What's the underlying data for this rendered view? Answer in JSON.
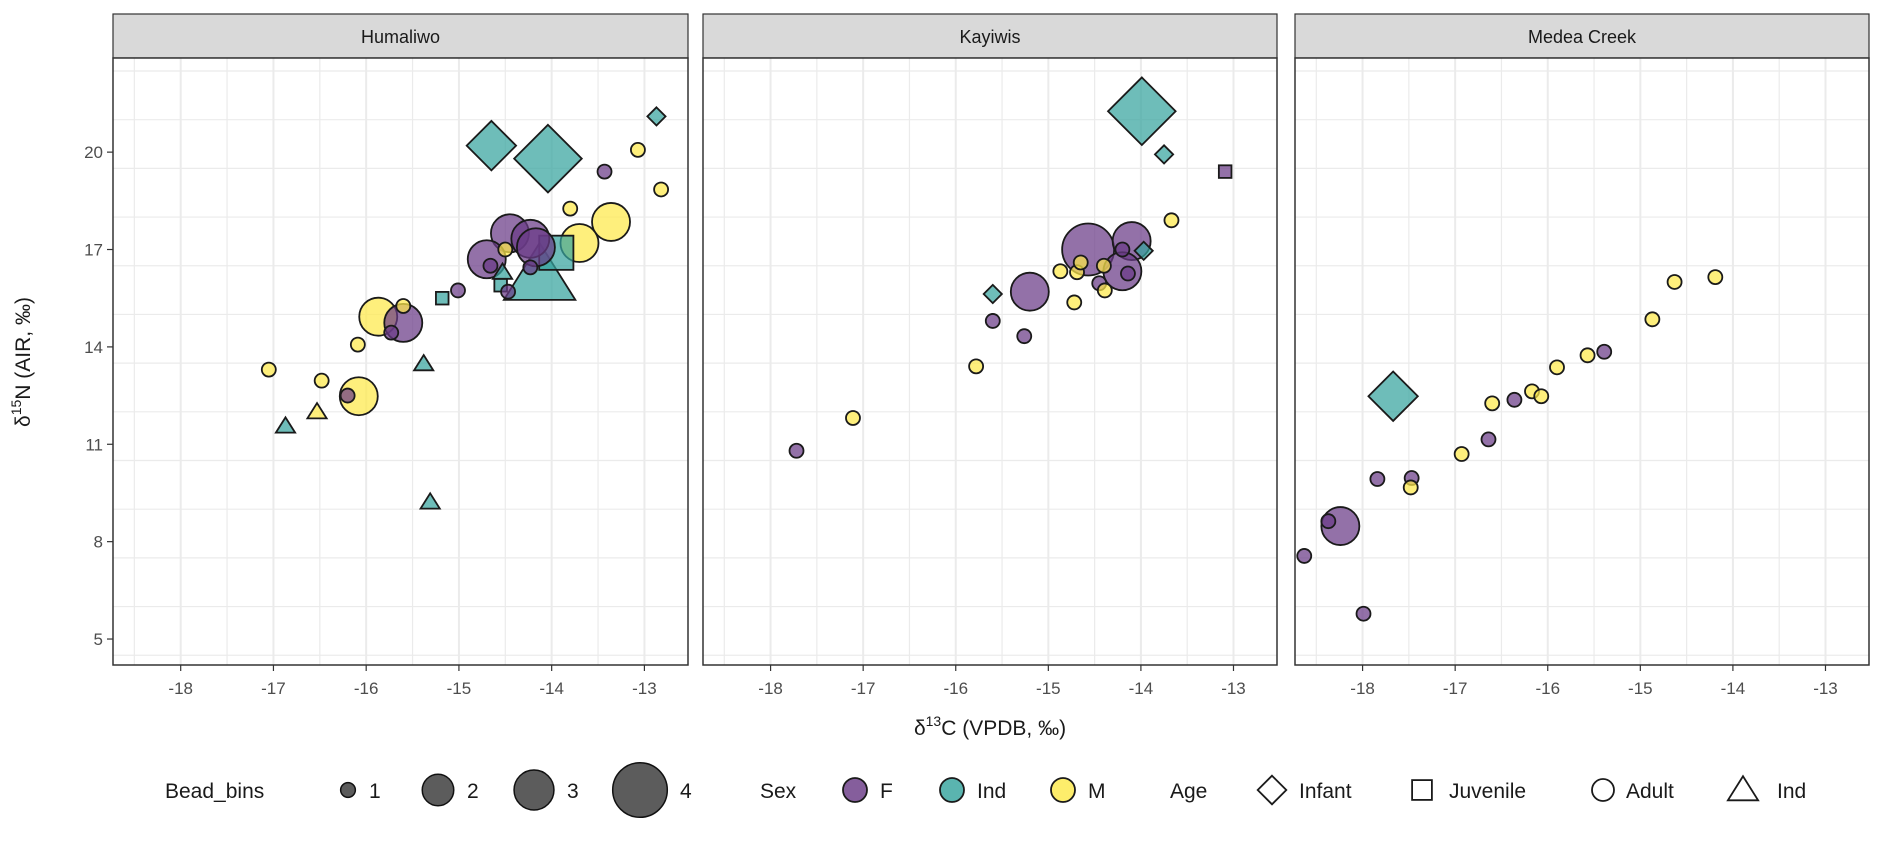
{
  "chart_data": {
    "type": "scatter",
    "xlabel_main": "δ",
    "xlabel_sup": "13",
    "xlabel_rest": "C (VPDB, ‰)",
    "ylabel_main": "δ",
    "ylabel_sup": "15",
    "ylabel_rest": "N (AIR, ‰)",
    "xlim": [
      -18.73,
      -12.53
    ],
    "ylim": [
      4.2,
      22.9
    ],
    "xticks": [
      -18,
      -17,
      -16,
      -15,
      -14,
      -13
    ],
    "yticks": [
      5,
      8,
      11,
      14,
      17,
      20
    ],
    "grid": true,
    "legend_placement": "bottom",
    "colors": {
      "F": "#6a3a86",
      "Ind": "#36a39e",
      "M": "#fde94a"
    },
    "point_fields": [
      "x",
      "y",
      "sex",
      "age",
      "bead_bin"
    ],
    "panels": [
      {
        "name": "Humaliwo",
        "points": [
          [
            -14.65,
            20.2,
            "Ind",
            "Infant",
            3
          ],
          [
            -14.04,
            19.8,
            "Ind",
            "Infant",
            4
          ],
          [
            -12.87,
            21.1,
            "Ind",
            "Infant",
            1
          ],
          [
            -13.07,
            20.07,
            "M",
            "Adult",
            1
          ],
          [
            -13.43,
            19.4,
            "F",
            "Adult",
            1
          ],
          [
            -12.82,
            18.85,
            "M",
            "Adult",
            1
          ],
          [
            -13.8,
            18.26,
            "M",
            "Adult",
            1
          ],
          [
            -13.36,
            17.85,
            "M",
            "Adult",
            3
          ],
          [
            -13.7,
            17.2,
            "M",
            "Adult",
            3
          ],
          [
            -13.95,
            16.9,
            "Ind",
            "Juvenile",
            3
          ],
          [
            -14.13,
            16.2,
            "Ind",
            "Ind",
            4
          ],
          [
            -14.45,
            17.5,
            "F",
            "Adult",
            3
          ],
          [
            -14.23,
            17.33,
            "F",
            "Adult",
            3
          ],
          [
            -14.17,
            17.07,
            "F",
            "Adult",
            3
          ],
          [
            -14.7,
            16.7,
            "F",
            "Adult",
            3
          ],
          [
            -14.66,
            16.5,
            "F",
            "Adult",
            1
          ],
          [
            -14.5,
            17.0,
            "M",
            "Adult",
            1
          ],
          [
            -14.23,
            16.45,
            "F",
            "Adult",
            1
          ],
          [
            -14.53,
            16.3,
            "Ind",
            "Ind",
            1
          ],
          [
            -14.55,
            15.9,
            "Ind",
            "Juvenile",
            1
          ],
          [
            -14.47,
            15.7,
            "F",
            "Adult",
            1
          ],
          [
            -15.18,
            15.5,
            "Ind",
            "Juvenile",
            1
          ],
          [
            -15.01,
            15.74,
            "F",
            "Adult",
            1
          ],
          [
            -15.87,
            14.93,
            "M",
            "Adult",
            3
          ],
          [
            -15.6,
            14.74,
            "F",
            "Adult",
            3
          ],
          [
            -15.6,
            15.26,
            "M",
            "Adult",
            1
          ],
          [
            -15.73,
            14.44,
            "F",
            "Adult",
            1
          ],
          [
            -15.38,
            13.48,
            "Ind",
            "Ind",
            1
          ],
          [
            -17.05,
            13.3,
            "M",
            "Adult",
            1
          ],
          [
            -16.09,
            14.07,
            "M",
            "Adult",
            1
          ],
          [
            -16.48,
            12.96,
            "M",
            "Adult",
            1
          ],
          [
            -16.2,
            12.5,
            "F",
            "Adult",
            1
          ],
          [
            -16.08,
            12.48,
            "M",
            "Adult",
            3
          ],
          [
            -16.53,
            12.0,
            "M",
            "Ind",
            1
          ],
          [
            -16.87,
            11.56,
            "Ind",
            "Ind",
            1
          ],
          [
            -15.31,
            9.22,
            "Ind",
            "Ind",
            1
          ]
        ]
      },
      {
        "name": "Kayiwis",
        "points": [
          [
            -13.99,
            21.26,
            "Ind",
            "Infant",
            4
          ],
          [
            -13.75,
            19.93,
            "Ind",
            "Infant",
            1
          ],
          [
            -13.09,
            19.4,
            "F",
            "Juvenile",
            1
          ],
          [
            -13.67,
            17.9,
            "M",
            "Adult",
            1
          ],
          [
            -14.57,
            17.0,
            "F",
            "Adult",
            4
          ],
          [
            -14.1,
            17.26,
            "F",
            "Adult",
            3
          ],
          [
            -14.2,
            16.33,
            "F",
            "Adult",
            3
          ],
          [
            -13.97,
            16.96,
            "Ind",
            "Infant",
            1
          ],
          [
            -14.14,
            16.26,
            "F",
            "Adult",
            1
          ],
          [
            -14.2,
            17.0,
            "F",
            "Adult",
            1
          ],
          [
            -14.69,
            16.3,
            "M",
            "Adult",
            1
          ],
          [
            -14.87,
            16.33,
            "M",
            "Adult",
            1
          ],
          [
            -14.65,
            16.6,
            "M",
            "Adult",
            1
          ],
          [
            -14.4,
            16.5,
            "M",
            "Adult",
            1
          ],
          [
            -14.45,
            15.96,
            "F",
            "Adult",
            1
          ],
          [
            -14.39,
            15.74,
            "M",
            "Adult",
            1
          ],
          [
            -14.72,
            15.37,
            "M",
            "Adult",
            1
          ],
          [
            -15.2,
            15.7,
            "F",
            "Adult",
            3
          ],
          [
            -15.6,
            15.63,
            "Ind",
            "Infant",
            1
          ],
          [
            -15.6,
            14.8,
            "F",
            "Adult",
            1
          ],
          [
            -15.26,
            14.33,
            "F",
            "Adult",
            1
          ],
          [
            -15.78,
            13.4,
            "M",
            "Adult",
            1
          ],
          [
            -17.11,
            11.81,
            "M",
            "Adult",
            1
          ],
          [
            -17.72,
            10.8,
            "F",
            "Adult",
            1
          ]
        ]
      },
      {
        "name": "Medea Creek",
        "points": [
          [
            -17.67,
            12.48,
            "Ind",
            "Infant",
            3
          ],
          [
            -18.24,
            8.48,
            "F",
            "Adult",
            3
          ],
          [
            -18.37,
            8.63,
            "F",
            "Adult",
            1
          ],
          [
            -18.63,
            7.56,
            "F",
            "Adult",
            1
          ],
          [
            -17.99,
            5.78,
            "F",
            "Adult",
            1
          ],
          [
            -17.84,
            9.93,
            "F",
            "Adult",
            1
          ],
          [
            -17.47,
            9.96,
            "F",
            "Adult",
            1
          ],
          [
            -17.48,
            9.67,
            "M",
            "Adult",
            1
          ],
          [
            -16.93,
            10.7,
            "M",
            "Adult",
            1
          ],
          [
            -16.64,
            11.15,
            "F",
            "Adult",
            1
          ],
          [
            -16.6,
            12.26,
            "M",
            "Adult",
            1
          ],
          [
            -16.36,
            12.37,
            "F",
            "Adult",
            1
          ],
          [
            -16.17,
            12.63,
            "M",
            "Adult",
            1
          ],
          [
            -16.07,
            12.48,
            "M",
            "Adult",
            1
          ],
          [
            -15.9,
            13.37,
            "M",
            "Adult",
            1
          ],
          [
            -15.57,
            13.74,
            "M",
            "Adult",
            1
          ],
          [
            -15.39,
            13.85,
            "F",
            "Adult",
            1
          ],
          [
            -14.87,
            14.85,
            "M",
            "Adult",
            1
          ],
          [
            -14.63,
            16.0,
            "M",
            "Adult",
            1
          ],
          [
            -14.19,
            16.15,
            "M",
            "Adult",
            1
          ]
        ]
      }
    ],
    "legend": {
      "bead_title": "Bead_bins",
      "bead_levels": [
        "1",
        "2",
        "3",
        "4"
      ],
      "sex_title": "Sex",
      "sex_levels": [
        "F",
        "Ind",
        "M"
      ],
      "age_title": "Age",
      "age_levels": [
        "Infant",
        "Juvenile",
        "Adult",
        "Ind"
      ]
    }
  }
}
